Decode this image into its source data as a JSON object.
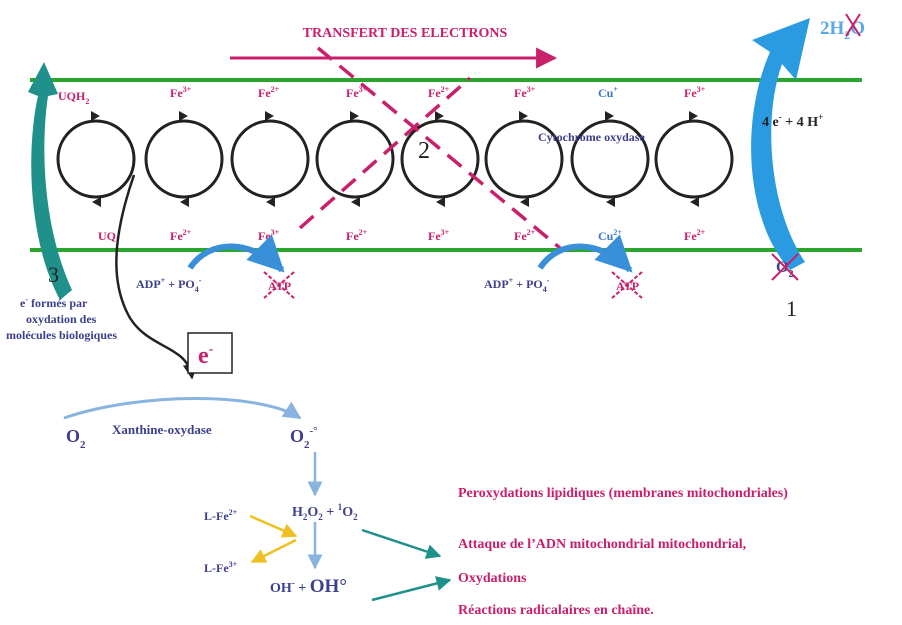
{
  "title": "TRANSFERT DES ELECTRONS",
  "water": {
    "prefix": "2H",
    "sub": "2",
    "suffix": "O"
  },
  "electrons_protons": {
    "a": "4 e",
    "sup1": "-",
    "b": " + 4 H",
    "sup2": "+"
  },
  "top_labels": [
    {
      "base": "UQH",
      "sub": "2",
      "sup": ""
    },
    {
      "base": "Fe",
      "sub": "",
      "sup": "3+"
    },
    {
      "base": "Fe",
      "sub": "",
      "sup": "2+"
    },
    {
      "base": "Fe",
      "sub": "",
      "sup": "3+"
    },
    {
      "base": "Fe",
      "sub": "",
      "sup": "2+"
    },
    {
      "base": "Fe",
      "sub": "",
      "sup": "3+"
    },
    {
      "base": "Cu",
      "sub": "",
      "sup": "+"
    },
    {
      "base": "Fe",
      "sub": "",
      "sup": "3+"
    }
  ],
  "bottom_labels": [
    {
      "base": "UQ",
      "sub": "",
      "sup": ""
    },
    {
      "base": "Fe",
      "sub": "",
      "sup": "2+"
    },
    {
      "base": "Fe",
      "sub": "",
      "sup": "3+"
    },
    {
      "base": "Fe",
      "sub": "",
      "sup": "2+"
    },
    {
      "base": "Fe",
      "sub": "",
      "sup": "3+"
    },
    {
      "base": "Fe",
      "sub": "",
      "sup": "2+"
    },
    {
      "base": "Cu",
      "sub": "",
      "sup": "2+"
    },
    {
      "base": "Fe",
      "sub": "",
      "sup": "2+"
    }
  ],
  "cytochrome_label": "Cytochrome  oxydase",
  "markers": {
    "one": "1",
    "two": "2",
    "three": "3"
  },
  "adp": {
    "base": "ADP",
    "sup1": "+",
    "mid": " + PO",
    "sub": "4",
    "sup2": "-"
  },
  "atp": "ATP",
  "oxygen": {
    "base": "O",
    "sub": "2"
  },
  "electron_origin": {
    "line1a": "e",
    "line1sup": "-",
    "line1b": " formés par",
    "line2": "oxydation des",
    "line3": "molécules biologiques"
  },
  "electron_box": {
    "base": "e",
    "sup": "-"
  },
  "xanthine": "Xanthine-oxydase",
  "o2_left": {
    "base": "O",
    "sub": "2"
  },
  "o2_radical": {
    "base": "O",
    "sub": "2",
    "sup": "-°"
  },
  "h2o2": {
    "a": "H",
    "sub1": "2",
    "b": "O",
    "sub2": "2",
    "c": " + ",
    "sup": "1",
    "d": "O",
    "sub3": "2"
  },
  "l_fe2": {
    "base": "L-Fe",
    "sup": "2+"
  },
  "l_fe3": {
    "base": "L-Fe",
    "sup": "3+"
  },
  "oh": {
    "a": "OH",
    "sup": "-",
    "b": " + ",
    "c": "OH°"
  },
  "consequences": [
    "Peroxydations lipidiques (membranes mitochondriales)",
    "Attaque de l’ADN mitochondrial mitochondrial,",
    "Oxydations",
    "Réactions radicalaires en chaîne."
  ],
  "colors": {
    "membrane": "#2aa52e",
    "magenta": "#c8206a",
    "navy": "#3c3f8c",
    "blue_label": "#3a78c8",
    "cyan_arrow": "#2a9be0",
    "teal": "#20908a",
    "yellow": "#f0c020",
    "dark": "#222222"
  }
}
